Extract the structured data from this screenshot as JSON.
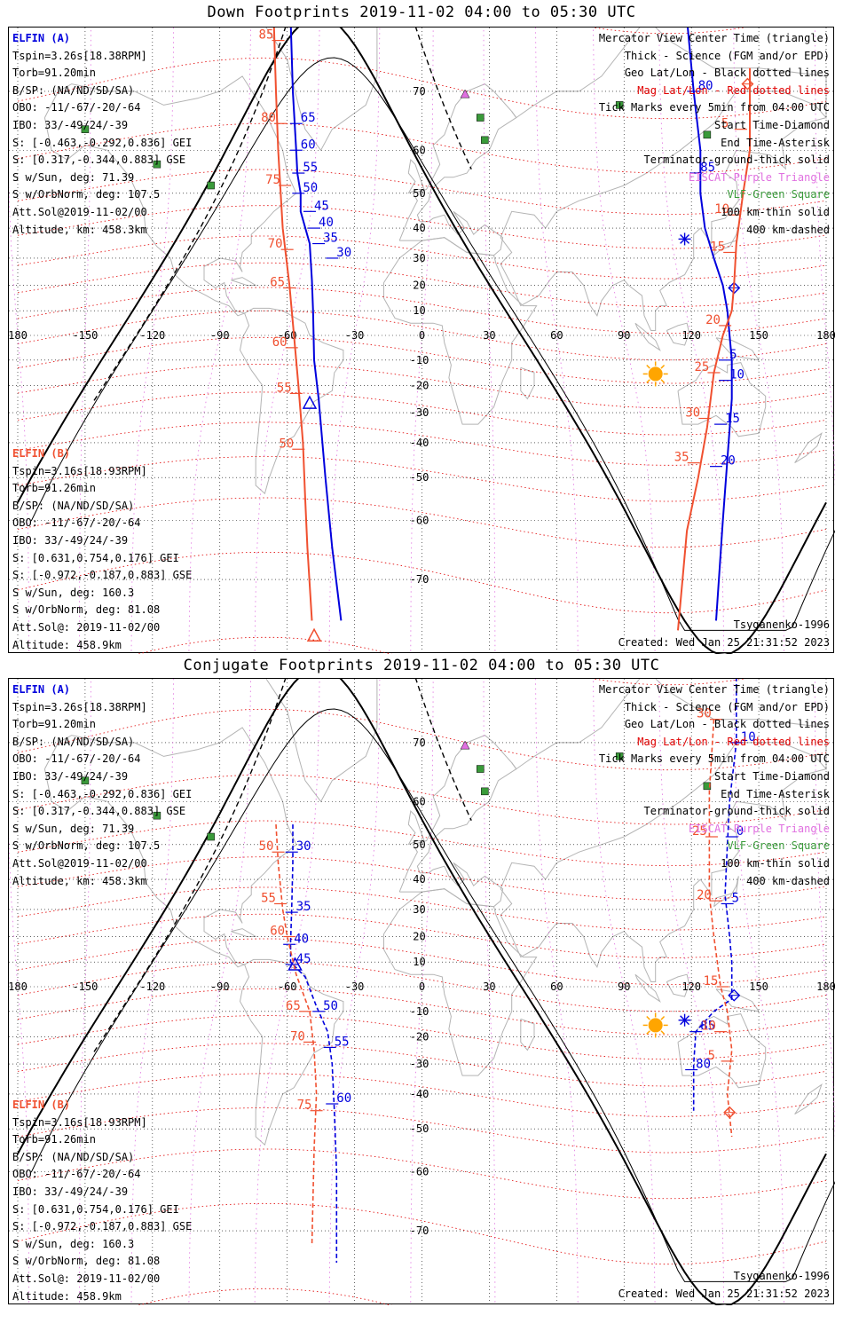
{
  "titles": {
    "top": "Down Footprints 2019-11-02 04:00 to 05:30 UTC",
    "bottom": "Conjugate Footprints 2019-11-02 04:00 to 05:30 UTC"
  },
  "colors": {
    "elfin_a": "#0000dd",
    "elfin_b": "#f05030",
    "geo_grid": "#000000",
    "mag_grid": "#e00000",
    "mag_lon": "#e070e0",
    "coast": "#b4b4b4",
    "sun": "#ffa500",
    "station": "#3a9a3a",
    "eiscat": "#e070e0"
  },
  "elfin_a": {
    "header": "ELFIN (A)",
    "lines": [
      "Tspin=3.26s[18.38RPM]",
      "Torb=91.20min",
      "B/SP: (NA/ND/SD/SA)",
      "OBO: -11/-67/-20/-64",
      "IBO: 33/-49/24/-39",
      "S: [-0.463,-0.292,0.836] GEI",
      "S: [0.317,-0.344,0.883] GSE",
      "S w/Sun, deg: 71.39",
      "S w/OrbNorm, deg: 107.5",
      "Att.Sol@2019-11-02/00",
      "Altitude, km: 458.3km"
    ]
  },
  "elfin_b": {
    "header": "ELFIN (B)",
    "lines": [
      "Tspin=3.16s[18.93RPM]",
      "Torb=91.26min",
      "B/SP: (NA/ND/SD/SA)",
      "OBO: -11/-67/-20/-64",
      "IBO: 33/-49/24/-39",
      "S: [0.631,0.754,0.176] GEI",
      "S: [-0.972,-0.187,0.883] GSE",
      "S w/Sun, deg: 160.3",
      "S w/OrbNorm, deg: 81.08",
      "Att.Sol@: 2019-11-02/00",
      "Altitude: 458.9km"
    ]
  },
  "legend": [
    {
      "text": "Mercator View Center Time (triangle)",
      "color": "#000000"
    },
    {
      "text": "Thick - Science (FGM and/or EPD)",
      "color": "#000000"
    },
    {
      "text": "Geo Lat/Lon - Black dotted lines",
      "color": "#000000"
    },
    {
      "text": "Mag Lat/Lon - Red dotted lines",
      "color": "#e00000"
    },
    {
      "text": "Tick Marks every 5min from 04:00 UTC",
      "color": "#000000"
    },
    {
      "text": "Start Time-Diamond",
      "color": "#000000"
    },
    {
      "text": "End Time-Asterisk",
      "color": "#000000"
    },
    {
      "text": "Terminator-ground-thick solid",
      "color": "#000000"
    },
    {
      "text": "EISCAT-Purple Triangle",
      "color": "#e070e0"
    },
    {
      "text": "VLF-Green Square",
      "color": "#3a9a3a"
    },
    {
      "text": "100 km-thin solid",
      "color": "#000000"
    },
    {
      "text": "400 km-dashed",
      "color": "#000000"
    }
  ],
  "model": "Tsyganenko-1996",
  "created": "Created: Wed Jan 25 21:31:52 2023",
  "axes": {
    "lon_ticks": [
      "180",
      "-150",
      "-120",
      "-90",
      "-60",
      "-30",
      "0",
      "30",
      "60",
      "90",
      "120",
      "150",
      "180"
    ],
    "lon_values": [
      -180,
      -150,
      -120,
      -90,
      -60,
      -30,
      0,
      30,
      60,
      90,
      120,
      150,
      180
    ],
    "lat_ticks": [
      "70",
      "60",
      "50",
      "40",
      "30",
      "20",
      "10",
      "-10",
      "-20",
      "-30",
      "-40",
      "-50",
      "-60",
      "-70"
    ],
    "lat_values": [
      70,
      60,
      50,
      40,
      30,
      20,
      10,
      -10,
      -20,
      -30,
      -40,
      -50,
      -60,
      -70
    ]
  },
  "eiscat_stations": [
    [
      19.2,
      69.6
    ],
    [
      20.2,
      78.0
    ]
  ],
  "vlf_stations": [
    [
      -150.0,
      64.0
    ],
    [
      -118.0,
      57.0
    ],
    [
      -94.0,
      52.0
    ],
    [
      26.0,
      66.0
    ],
    [
      28.0,
      62.0
    ],
    [
      88.0,
      68.0
    ],
    [
      127.0,
      63.0
    ]
  ],
  "down": {
    "sun": [
      104,
      -15.5
    ],
    "elfin_a": {
      "track": [
        [
          -58.5,
          78
        ],
        [
          -57.5,
          70
        ],
        [
          -56,
          60
        ],
        [
          -55.5,
          55
        ],
        [
          -54,
          50
        ],
        [
          -54,
          45
        ],
        [
          -50,
          35
        ],
        [
          -49,
          22
        ],
        [
          -48.5,
          10
        ],
        [
          -48,
          -10
        ],
        [
          -46,
          -25
        ],
        [
          -43,
          -50
        ],
        [
          -40,
          -65
        ],
        [
          -36,
          -75
        ]
      ],
      "ticks": [
        {
          "lon": -56.0,
          "lat": 65.0,
          "label": "65"
        },
        {
          "lon": -56.0,
          "lat": 60.0,
          "label": "60"
        },
        {
          "lon": -55.0,
          "lat": 55.0,
          "label": "55"
        },
        {
          "lon": -55.0,
          "lat": 50.0,
          "label": "50"
        },
        {
          "lon": -50.0,
          "lat": 45.0,
          "label": "45"
        },
        {
          "lon": -48.0,
          "lat": 40.0,
          "label": "40"
        },
        {
          "lon": -46.0,
          "lat": 35.0,
          "label": "35"
        },
        {
          "lon": -40.0,
          "lat": 30.0,
          "label": "30"
        }
      ],
      "center_triangle": [
        -50.0,
        -26.5
      ],
      "track2": [
        [
          118,
          78
        ],
        [
          121,
          70
        ],
        [
          124,
          60
        ],
        [
          124,
          50
        ],
        [
          126,
          40
        ],
        [
          130,
          30
        ],
        [
          134,
          20
        ],
        [
          136,
          10
        ],
        [
          138,
          -10
        ],
        [
          138,
          -25
        ],
        [
          136,
          -45
        ],
        [
          134,
          -60
        ],
        [
          131,
          -75
        ]
      ],
      "ticks2": [
        {
          "lon": 121.0,
          "lat": 70.0,
          "label": "80"
        },
        {
          "lon": 122.0,
          "lat": 55.0,
          "label": "85"
        },
        {
          "lon": 135.0,
          "lat": -10.0,
          "label": "5"
        },
        {
          "lon": 135.0,
          "lat": -18.0,
          "label": "10"
        },
        {
          "lon": 133.0,
          "lat": -34.0,
          "label": "15"
        },
        {
          "lon": 131.0,
          "lat": -47.0,
          "label": "20"
        }
      ],
      "end_asterisk": [
        117.0,
        36.5
      ],
      "start_diamond": [
        139.0,
        19.0
      ]
    },
    "elfin_b": {
      "track": [
        [
          -66,
          78
        ],
        [
          -65,
          70
        ],
        [
          -64,
          60
        ],
        [
          -62,
          40
        ],
        [
          -59,
          20
        ],
        [
          -57,
          0
        ],
        [
          -55,
          -20
        ],
        [
          -53,
          -40
        ],
        [
          -52,
          -55
        ],
        [
          -51,
          -65
        ],
        [
          -49,
          -75
        ]
      ],
      "ticks": [
        {
          "lon": -64.0,
          "lat": 76.0,
          "label": "85"
        },
        {
          "lon": -63.0,
          "lat": 65.0,
          "label": "80"
        },
        {
          "lon": -61.0,
          "lat": 52.0,
          "label": "75"
        },
        {
          "lon": -60.0,
          "lat": 33.0,
          "label": "70"
        },
        {
          "lon": -59.0,
          "lat": 19.0,
          "label": "65"
        },
        {
          "lon": -58.0,
          "lat": -5.0,
          "label": "60"
        },
        {
          "lon": -56.0,
          "lat": -23.0,
          "label": "55"
        },
        {
          "lon": -55.0,
          "lat": -42.0,
          "label": "50"
        }
      ],
      "center_triangle": [
        -48.0,
        -76.5
      ],
      "track2": [
        [
          146,
          73
        ],
        [
          146,
          60
        ],
        [
          143,
          50
        ],
        [
          140,
          35
        ],
        [
          139,
          20
        ],
        [
          138,
          10
        ],
        [
          134,
          0
        ],
        [
          130,
          -15
        ],
        [
          127,
          -35
        ],
        [
          123,
          -50
        ],
        [
          118,
          -62
        ],
        [
          114,
          -76
        ]
      ],
      "ticks2": [
        {
          "lon": 142.0,
          "lat": 64.0,
          "label": "5"
        },
        {
          "lon": 139.0,
          "lat": 44.0,
          "label": "10"
        },
        {
          "lon": 137.0,
          "lat": 32.0,
          "label": "15"
        },
        {
          "lon": 135.0,
          "lat": 4.0,
          "label": "20"
        },
        {
          "lon": 130.0,
          "lat": -15.0,
          "label": "25"
        },
        {
          "lon": 126.0,
          "lat": -32.0,
          "label": "30"
        },
        {
          "lon": 121.0,
          "lat": -46.0,
          "label": "35"
        }
      ],
      "start_diamond": [
        145.0,
        71.0
      ]
    }
  },
  "conj": {
    "sun": [
      104,
      -15.5
    ],
    "elfin_a": {
      "track": [
        [
          -57.5,
          55
        ],
        [
          -57.5,
          45
        ],
        [
          -58,
          30
        ],
        [
          -58.5,
          18
        ],
        [
          -58.5,
          10
        ],
        [
          -52,
          4
        ],
        [
          -47,
          -8
        ],
        [
          -42,
          -18
        ],
        [
          -40,
          -30
        ],
        [
          -39,
          -45
        ],
        [
          -38,
          -60
        ],
        [
          -38,
          -74
        ]
      ],
      "ticks": [
        {
          "lon": -58.0,
          "lat": 48.0,
          "label": "30"
        },
        {
          "lon": -58.0,
          "lat": 29.0,
          "label": "35"
        },
        {
          "lon": -59.0,
          "lat": 17.0,
          "label": "40"
        },
        {
          "lon": -58.0,
          "lat": 9.0,
          "label": "45"
        },
        {
          "lon": -46.0,
          "lat": -10.0,
          "label": "50"
        },
        {
          "lon": -41.0,
          "lat": -24.0,
          "label": "55"
        },
        {
          "lon": -40.0,
          "lat": -43.0,
          "label": "60"
        }
      ],
      "center_triangle": [
        -56.5,
        9.0
      ],
      "track2": [
        [
          140,
          78
        ],
        [
          140,
          70
        ],
        [
          137,
          60
        ],
        [
          136,
          50
        ],
        [
          135,
          35
        ],
        [
          137,
          20
        ],
        [
          138,
          10
        ],
        [
          138,
          -5
        ],
        [
          130,
          -10
        ],
        [
          122,
          -18
        ],
        [
          121,
          -30
        ],
        [
          121,
          -45
        ]
      ],
      "ticks2": [
        {
          "lon": 140.0,
          "lat": 70.0,
          "label": "10"
        },
        {
          "lon": 138.0,
          "lat": 52.0,
          "label": "0"
        },
        {
          "lon": 136.0,
          "lat": 32.0,
          "label": "5"
        },
        {
          "lon": 122.0,
          "lat": -18.0,
          "label": "85"
        },
        {
          "lon": 120.0,
          "lat": -32.0,
          "label": "80"
        }
      ],
      "end_asterisk": [
        117.0,
        -13.5
      ],
      "start_diamond": [
        139.0,
        -3.5
      ]
    },
    "elfin_b": {
      "track": [
        [
          -65,
          55
        ],
        [
          -64,
          45
        ],
        [
          -62,
          30
        ],
        [
          -60,
          20
        ],
        [
          -56,
          5
        ],
        [
          -50,
          -10
        ],
        [
          -48,
          -25
        ],
        [
          -47,
          -40
        ],
        [
          -48,
          -55
        ],
        [
          -49,
          -72
        ]
      ],
      "ticks": [
        {
          "lon": -64.0,
          "lat": 48.0,
          "label": "50"
        },
        {
          "lon": -63.0,
          "lat": 32.0,
          "label": "55"
        },
        {
          "lon": -59.0,
          "lat": 20.0,
          "label": "60"
        },
        {
          "lon": -52.0,
          "lat": -10.0,
          "label": "65"
        },
        {
          "lon": -50.0,
          "lat": -22.0,
          "label": "70"
        },
        {
          "lon": -47.0,
          "lat": -45.0,
          "label": "75"
        }
      ],
      "track2": [
        [
          130,
          73
        ],
        [
          128,
          62
        ],
        [
          128,
          48
        ],
        [
          128,
          35
        ],
        [
          130,
          20
        ],
        [
          133,
          0
        ],
        [
          136,
          -10
        ],
        [
          138,
          -25
        ],
        [
          136,
          -40
        ],
        [
          138,
          -52
        ]
      ],
      "ticks2": [
        {
          "lon": 131.0,
          "lat": 73.0,
          "label": "30"
        },
        {
          "lon": 129.0,
          "lat": 52.0,
          "label": "25"
        },
        {
          "lon": 131.0,
          "lat": 33.0,
          "label": "20"
        },
        {
          "lon": 134.0,
          "lat": 0.0,
          "label": "15"
        },
        {
          "lon": 133.0,
          "lat": -18.0,
          "label": "10"
        },
        {
          "lon": 136.0,
          "lat": -29.0,
          "label": "5"
        }
      ],
      "start_diamond": [
        137.0,
        -45.5
      ]
    }
  }
}
